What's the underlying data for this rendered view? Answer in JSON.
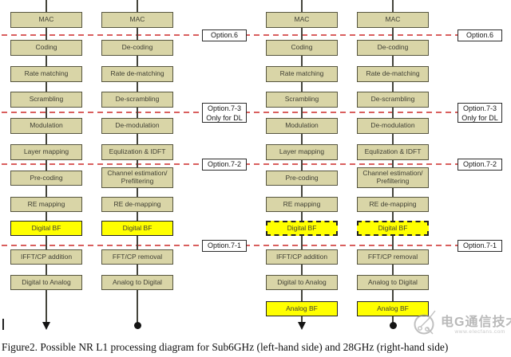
{
  "caption": "Figure2. Possible NR L1 processing diagram for Sub6GHz (left-hand side) and 28GHz (right-hand side)",
  "watermark": {
    "brand": "电G通信技术",
    "url": "www.elecfans.com"
  },
  "colors": {
    "box_fill": "#d9d5a7",
    "box_border": "#56553f",
    "highlight_fill": "#ffff00",
    "option_line_red": "#d95f5e",
    "connector": "#45453c"
  },
  "option_labels": [
    {
      "label": "Option.6",
      "sub": ""
    },
    {
      "label": "Option.7-3",
      "sub": "Only for DL"
    },
    {
      "label": "Option.7-2",
      "sub": ""
    },
    {
      "label": "Option.7-1",
      "sub": ""
    }
  ],
  "diagrams": [
    {
      "side": "left",
      "band": "Sub6GHz",
      "columns": [
        {
          "role": "transmitter",
          "end": "arrow",
          "cells": [
            {
              "label": "MAC"
            },
            {
              "label": "Coding"
            },
            {
              "label": "Rate matching"
            },
            {
              "label": "Scrambling"
            },
            {
              "label": "Modulation"
            },
            {
              "label": "Layer mapping"
            },
            {
              "label": "Pre-coding"
            },
            {
              "label": "RE mapping"
            },
            {
              "label": "Digital BF",
              "style": "highlight"
            },
            {
              "label": "IFFT/CP addition"
            },
            {
              "label": "Digital to Analog"
            }
          ]
        },
        {
          "role": "receiver",
          "end": "dot",
          "cells": [
            {
              "label": "MAC"
            },
            {
              "label": "De-coding"
            },
            {
              "label": "Rate de-matching"
            },
            {
              "label": "De-scrambling"
            },
            {
              "label": "De-modulation"
            },
            {
              "label": "Equlization & IDFT"
            },
            {
              "label": "Channel estimation/Prefiltering",
              "lines": [
                "Channel estimation/",
                "Prefiltering"
              ]
            },
            {
              "label": "RE de-mapping"
            },
            {
              "label": "Digital BF",
              "style": "highlight"
            },
            {
              "label": "FFT/CP removal"
            },
            {
              "label": "Analog to Digital"
            }
          ]
        }
      ]
    },
    {
      "side": "right",
      "band": "28GHz",
      "columns": [
        {
          "role": "transmitter",
          "end": "arrow",
          "cells": [
            {
              "label": "MAC"
            },
            {
              "label": "Coding"
            },
            {
              "label": "Rate matching"
            },
            {
              "label": "Scrambling"
            },
            {
              "label": "Modulation"
            },
            {
              "label": "Layer mapping"
            },
            {
              "label": "Pre-coding"
            },
            {
              "label": "RE mapping"
            },
            {
              "label": "Digital BF",
              "style": "highlight-dashed"
            },
            {
              "label": "IFFT/CP addition"
            },
            {
              "label": "Digital to Analog"
            },
            {
              "label": "Analog BF",
              "style": "highlight"
            }
          ]
        },
        {
          "role": "receiver",
          "end": "dot",
          "cells": [
            {
              "label": "MAC"
            },
            {
              "label": "De-coding"
            },
            {
              "label": "Rate de-matching"
            },
            {
              "label": "De-scrambling"
            },
            {
              "label": "De-modulation"
            },
            {
              "label": "Equlization & IDFT"
            },
            {
              "label": "Channel estimation/Prefiltering",
              "lines": [
                "Channel estimation/",
                "Prefiltering"
              ]
            },
            {
              "label": "RE de-mapping"
            },
            {
              "label": "Digital BF",
              "style": "highlight-dashed"
            },
            {
              "label": "FFT/CP removal"
            },
            {
              "label": "Analog to Digital"
            },
            {
              "label": "Analog BF",
              "style": "highlight"
            }
          ]
        }
      ]
    }
  ]
}
